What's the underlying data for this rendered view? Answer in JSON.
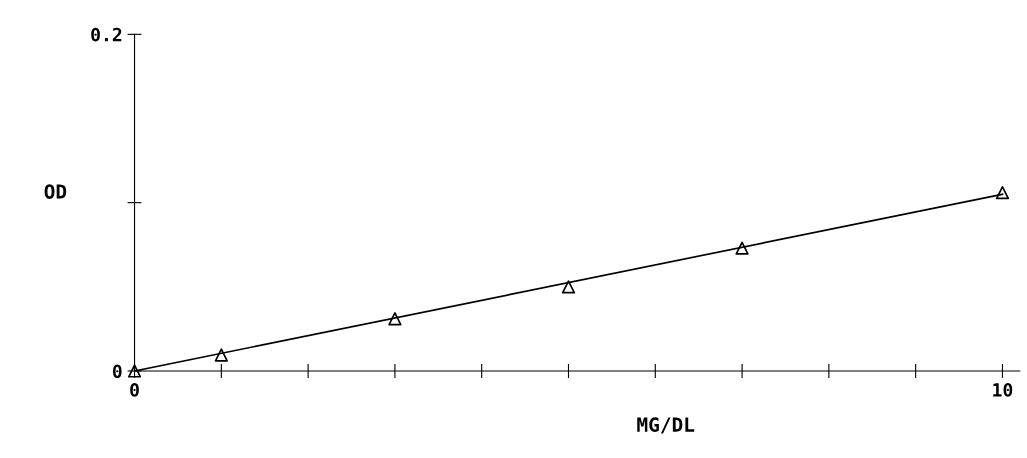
{
  "chart_data": {
    "type": "scatter",
    "xlabel": "MG/DL",
    "ylabel": "OD",
    "xlim": [
      0,
      10.2
    ],
    "ylim": [
      0,
      0.2
    ],
    "xticks": [
      0,
      {
        "value": 1,
        "label": null
      },
      {
        "value": 2,
        "label": null
      },
      {
        "value": 3,
        "label": null
      },
      {
        "value": 4,
        "label": null
      },
      {
        "value": 5,
        "label": null
      },
      {
        "value": 6,
        "label": null
      },
      {
        "value": 7,
        "label": null
      },
      {
        "value": 8,
        "label": null
      },
      {
        "value": 9,
        "label": null
      },
      10
    ],
    "yticks": [
      0,
      {
        "value": 0.1,
        "label": null
      },
      0.2
    ],
    "grid": false,
    "legend": false,
    "series": [
      {
        "marker": "triangle",
        "color": "#000000",
        "x": [
          0,
          1,
          3,
          5,
          7,
          10
        ],
        "values": [
          0,
          0.0095,
          0.031,
          0.05,
          0.073,
          0.106
        ]
      },
      {
        "type": "line",
        "line_style": "solid",
        "color": "#000000",
        "x": [
          0,
          10
        ],
        "values": [
          0,
          0.105
        ]
      }
    ]
  }
}
